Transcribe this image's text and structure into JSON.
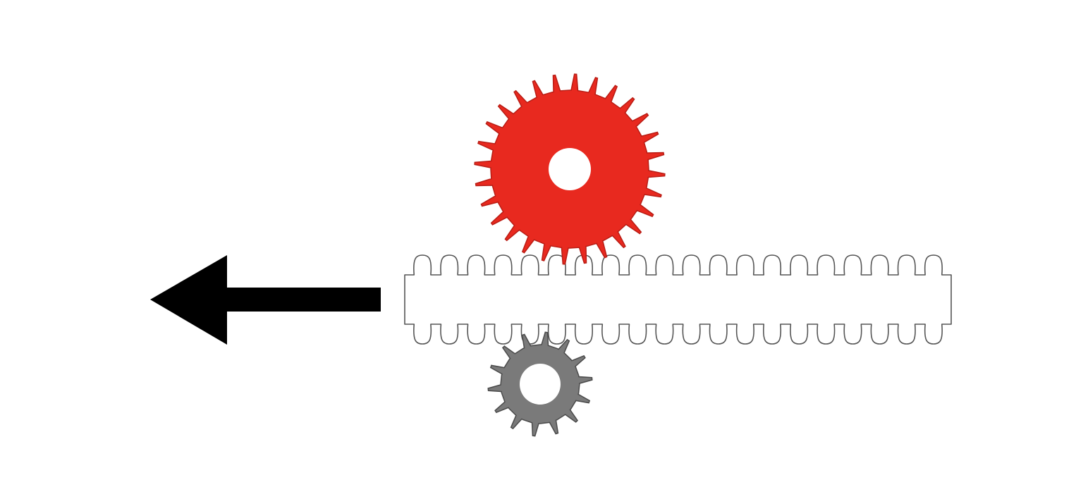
{
  "diagram": {
    "elements": [
      {
        "id": "large-gear",
        "kind": "spur gear",
        "teeth": 28,
        "color": "#e8291f"
      },
      {
        "id": "small-gear",
        "kind": "spur gear",
        "teeth": 14,
        "color": "#7a7a7a"
      },
      {
        "id": "gear-rack",
        "kind": "double-sided toothed rack",
        "teeth_per_side": 20,
        "color": "#ffffff"
      },
      {
        "id": "direction-arrow",
        "kind": "arrow",
        "direction": "left",
        "color": "#000000"
      }
    ],
    "colors": {
      "background": "#ffffff",
      "large_gear": "#e8291f",
      "small_gear": "#7a7a7a",
      "rack_fill": "#ffffff",
      "rack_outline": "#555555",
      "arrow": "#000000"
    }
  }
}
